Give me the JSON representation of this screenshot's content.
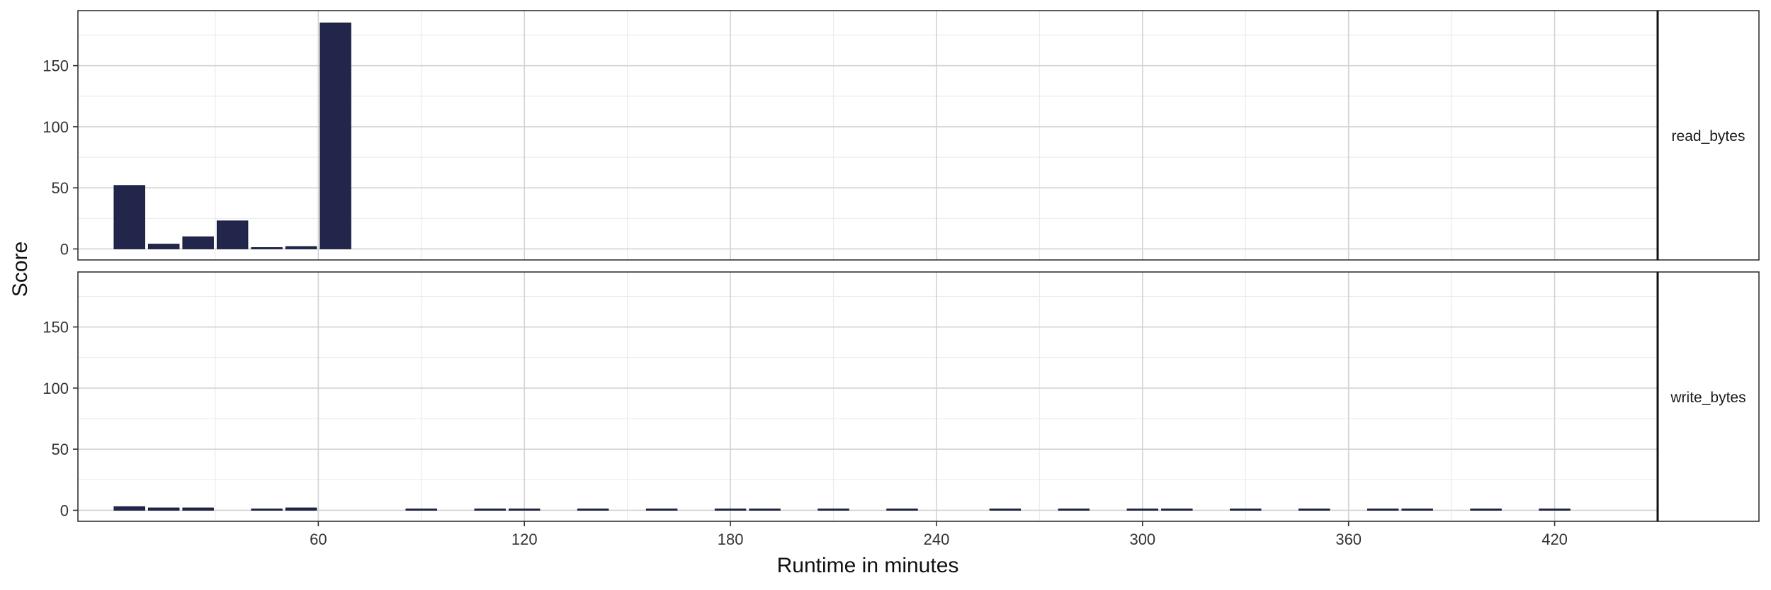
{
  "chart_data": {
    "type": "bar",
    "xlabel": "Runtime in minutes",
    "ylabel": "Score",
    "xlim": [
      -10,
      450
    ],
    "ylim": [
      -9,
      195
    ],
    "x_ticks": [
      60,
      120,
      180,
      240,
      300,
      360,
      420
    ],
    "x_tick_labels": [
      "60",
      "120",
      "180",
      "240",
      "300",
      "360",
      "420"
    ],
    "y_ticks": [
      0,
      50,
      100,
      150
    ],
    "y_tick_labels": [
      "0",
      "50",
      "100",
      "150"
    ],
    "y_minor_ticks": [
      25,
      75,
      125,
      175
    ],
    "x_minor_ticks": [
      30,
      90,
      150,
      210,
      270,
      330,
      390
    ],
    "bar_width": 9,
    "bar_color": "#21264a",
    "grid": true,
    "panels": [
      {
        "facet_label": "read_bytes",
        "x": [
          5,
          15,
          25,
          35,
          45,
          55,
          65
        ],
        "values": [
          52,
          4,
          10,
          23,
          0,
          2,
          185
        ]
      },
      {
        "facet_label": "write_bytes",
        "x": [
          5,
          15,
          25,
          45,
          55,
          90,
          110,
          120,
          140,
          160,
          180,
          190,
          210,
          230,
          260,
          280,
          300,
          310,
          330,
          350,
          370,
          380,
          400,
          420
        ],
        "values": [
          3,
          2,
          2,
          0.5,
          2,
          0.5,
          0.5,
          0.5,
          0.5,
          0.5,
          0.5,
          0.5,
          0.5,
          0.5,
          0.5,
          0.5,
          0.5,
          0.5,
          0.5,
          0.5,
          0.5,
          0.5,
          0.5,
          0.5
        ]
      }
    ]
  }
}
